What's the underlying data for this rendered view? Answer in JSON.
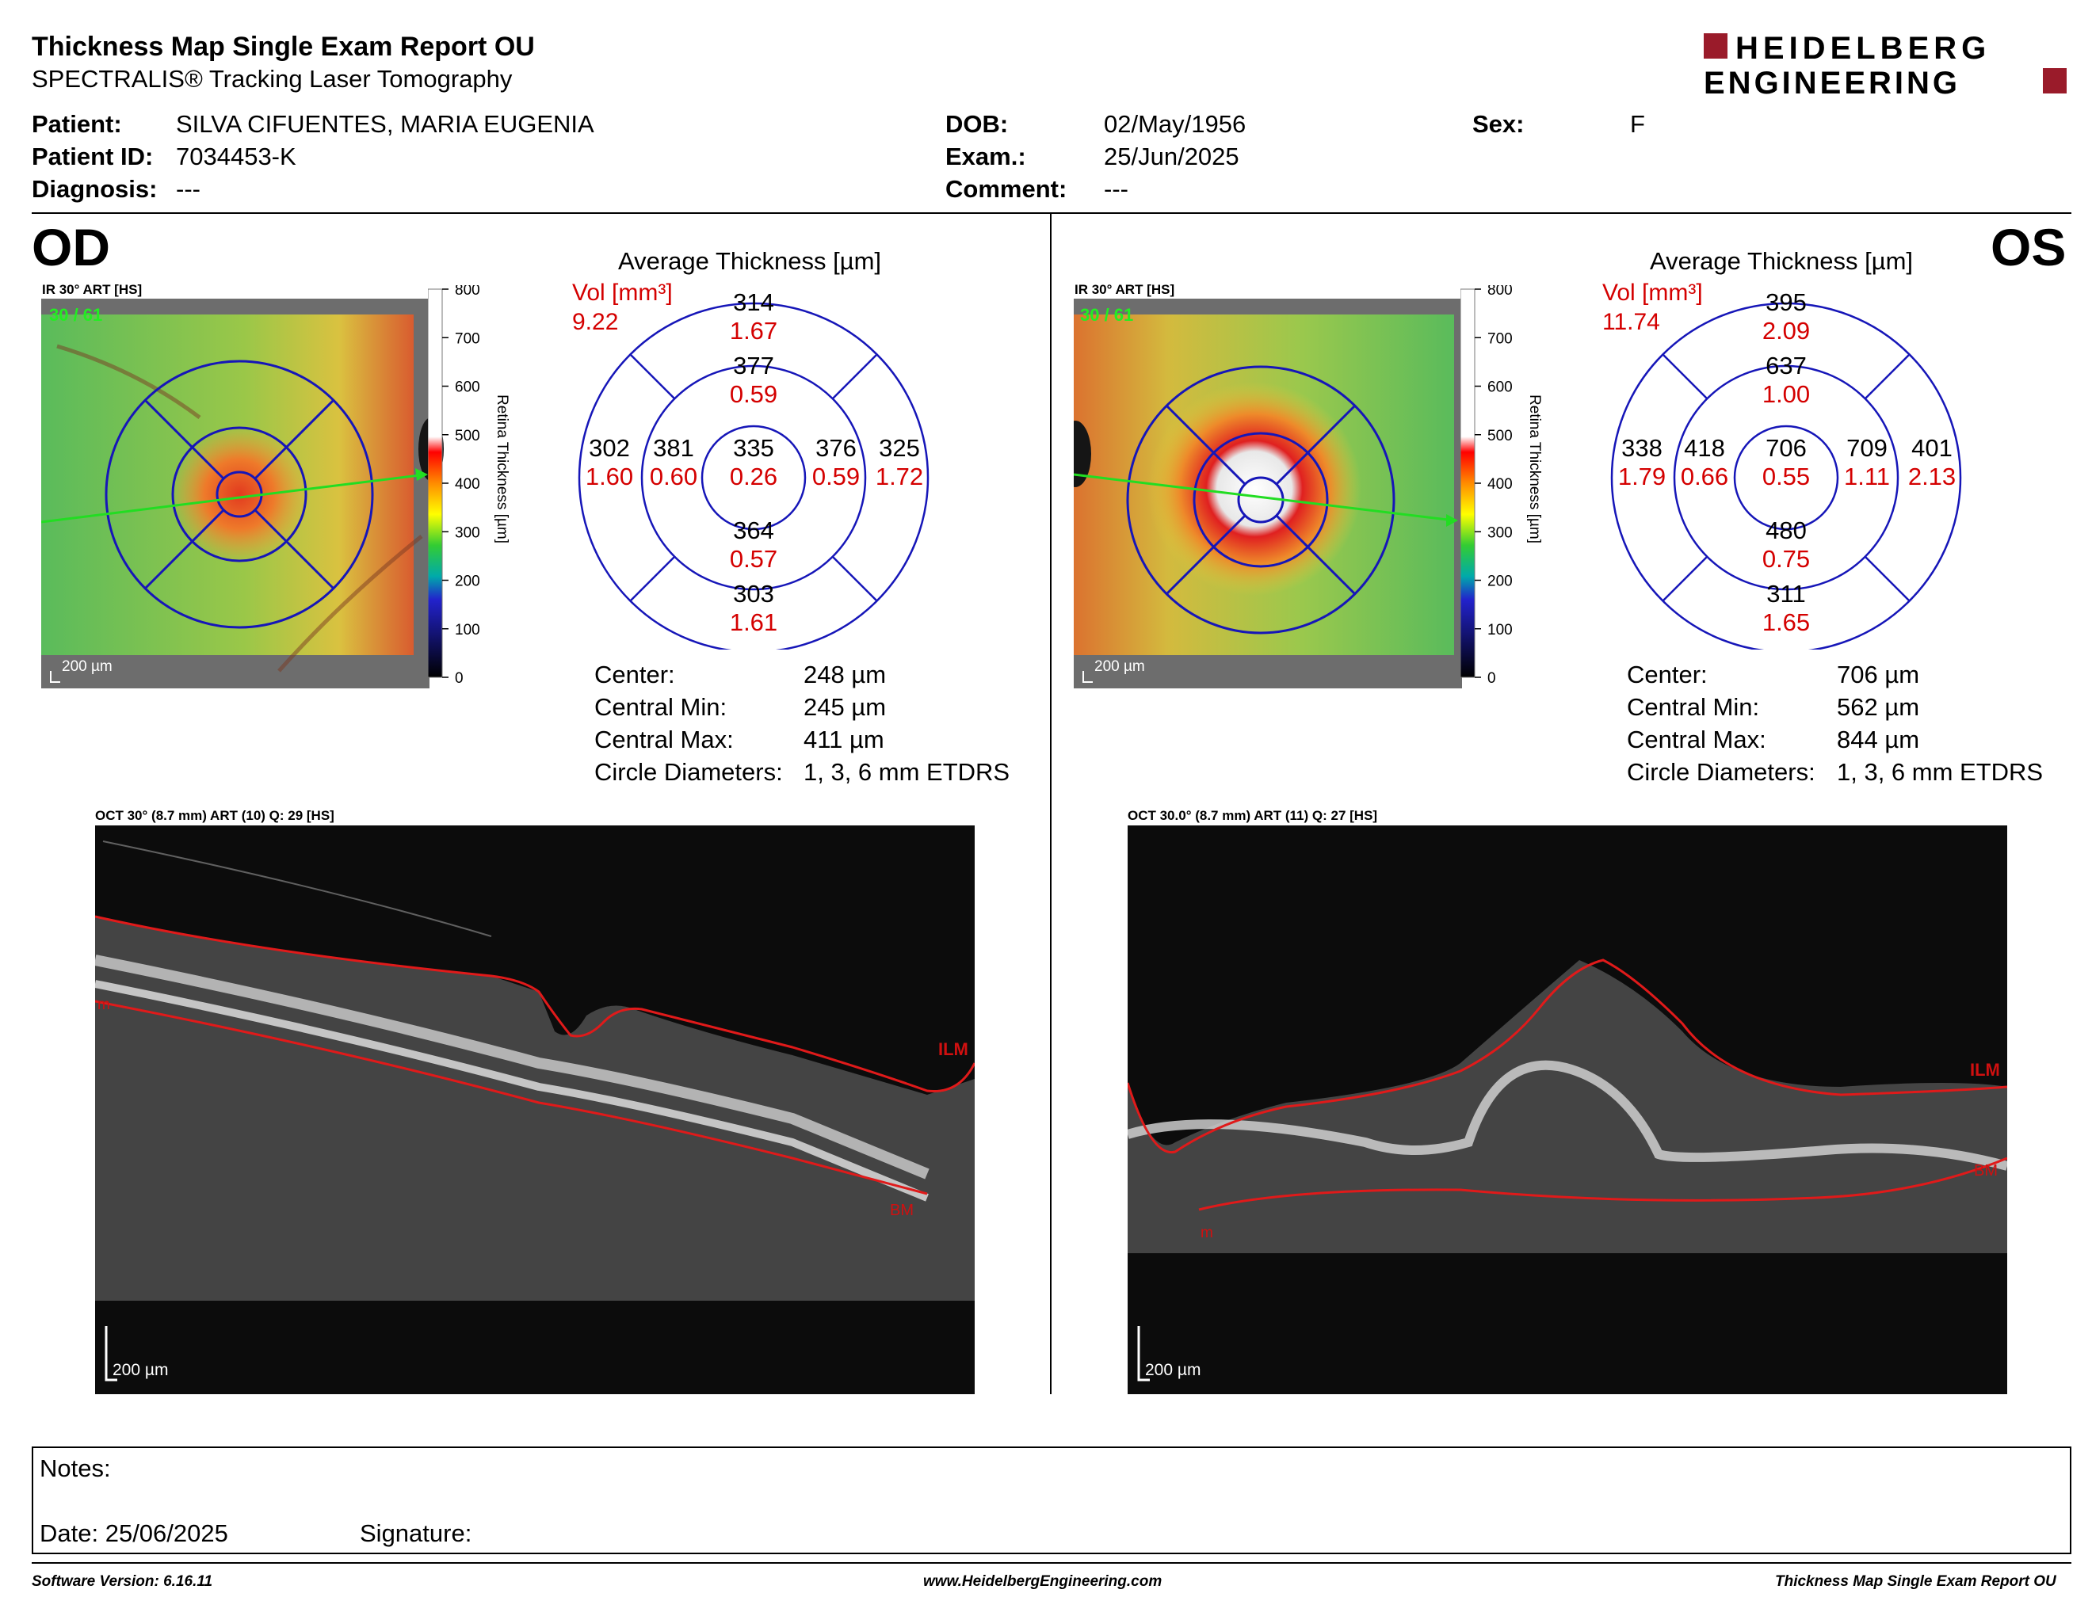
{
  "report": {
    "title": "Thickness Map Single Exam Report OU",
    "subtitle": "SPECTRALIS® Tracking Laser Tomography",
    "logo_line1": "HEIDELBERG",
    "logo_line2": "ENGINEERING",
    "brand_color": "#9a1b2a"
  },
  "patient": {
    "patient_label": "Patient:",
    "patient_value": "SILVA CIFUENTES, MARIA EUGENIA",
    "id_label": "Patient ID:",
    "id_value": "7034453-K",
    "diagnosis_label": "Diagnosis:",
    "diagnosis_value": "---",
    "dob_label": "DOB:",
    "dob_value": "02/May/1956",
    "exam_label": "Exam.:",
    "exam_value": "25/Jun/2025",
    "comment_label": "Comment:",
    "comment_value": "---",
    "sex_label": "Sex:",
    "sex_value": "F"
  },
  "od": {
    "eye": "OD",
    "ir_label": "IR 30° ART [HS]",
    "frames": "30 / 61",
    "scale_bar": "200 µm",
    "colorbar_ticks": [
      "800",
      "700",
      "600",
      "500",
      "400",
      "300",
      "200",
      "100",
      "0"
    ],
    "colorbar_title": "Retina Thickness [µm]",
    "avg_title": "Average Thickness [µm]",
    "vol_label": "Vol [mm³]",
    "vol_total": "9.22",
    "grid": {
      "center": {
        "t": "335",
        "v": "0.26"
      },
      "inner_sup": {
        "t": "377",
        "v": "0.59"
      },
      "inner_inf": {
        "t": "364",
        "v": "0.57"
      },
      "inner_left": {
        "t": "381",
        "v": "0.60"
      },
      "inner_right": {
        "t": "376",
        "v": "0.59"
      },
      "outer_sup": {
        "t": "314",
        "v": "1.67"
      },
      "outer_inf": {
        "t": "303",
        "v": "1.61"
      },
      "outer_left": {
        "t": "302",
        "v": "1.60"
      },
      "outer_right": {
        "t": "325",
        "v": "1.72"
      }
    },
    "stats": [
      {
        "label": "Center:",
        "value": "248 µm"
      },
      {
        "label": "Central Min:",
        "value": "245 µm"
      },
      {
        "label": "Central Max:",
        "value": "411 µm"
      },
      {
        "label": "Circle Diameters:",
        "value": "1, 3, 6 mm ETDRS"
      }
    ],
    "oct_label": "OCT 30° (8.7 mm) ART (10) Q: 29 [HS]",
    "oct_scale": "200 µm",
    "ilm": "ILM",
    "bm": "BM",
    "m": "m"
  },
  "os": {
    "eye": "OS",
    "ir_label": "IR 30° ART [HS]",
    "frames": "30 / 61",
    "scale_bar": "200 µm",
    "colorbar_ticks": [
      "800",
      "700",
      "600",
      "500",
      "400",
      "300",
      "200",
      "100",
      "0"
    ],
    "colorbar_title": "Retina Thickness [µm]",
    "avg_title": "Average Thickness [µm]",
    "vol_label": "Vol [mm³]",
    "vol_total": "11.74",
    "grid": {
      "center": {
        "t": "706",
        "v": "0.55"
      },
      "inner_sup": {
        "t": "637",
        "v": "1.00"
      },
      "inner_inf": {
        "t": "480",
        "v": "0.75"
      },
      "inner_left": {
        "t": "418",
        "v": "0.66"
      },
      "inner_right": {
        "t": "709",
        "v": "1.11"
      },
      "outer_sup": {
        "t": "395",
        "v": "2.09"
      },
      "outer_inf": {
        "t": "311",
        "v": "1.65"
      },
      "outer_left": {
        "t": "338",
        "v": "1.79"
      },
      "outer_right": {
        "t": "401",
        "v": "2.13"
      }
    },
    "stats": [
      {
        "label": "Center:",
        "value": "706 µm"
      },
      {
        "label": "Central Min:",
        "value": "562 µm"
      },
      {
        "label": "Central Max:",
        "value": "844 µm"
      },
      {
        "label": "Circle Diameters:",
        "value": "1, 3, 6 mm ETDRS"
      }
    ],
    "oct_label": "OCT 30.0° (8.7 mm) ART (11) Q: 27 [HS]",
    "oct_scale": "200 µm",
    "ilm": "ILM",
    "bm": "BM",
    "m": "m"
  },
  "notes": {
    "notes_label": "Notes:",
    "date_label": "Date: 25/06/2025",
    "signature_label": "Signature:"
  },
  "footer": {
    "software": "Software Version: 6.16.11",
    "website": "www.HeidelbergEngineering.com",
    "report_name": "Thickness Map Single Exam Report OU"
  }
}
